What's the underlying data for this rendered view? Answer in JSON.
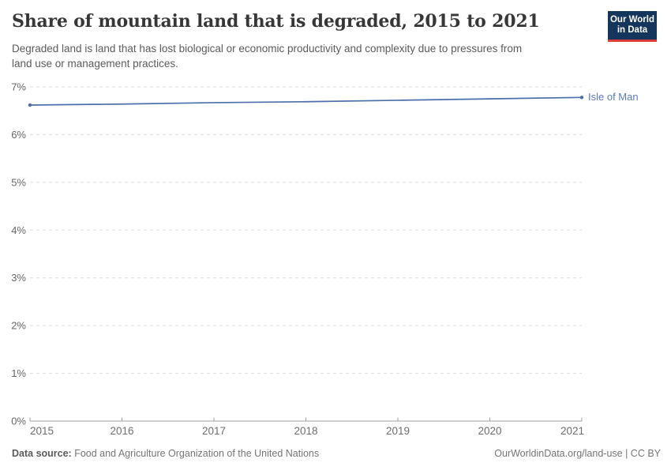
{
  "header": {
    "title": "Share of mountain land that is degraded, 2015 to 2021",
    "subtitle_line1": "Degraded land is land that has lost biological or economic productivity and complexity due to pressures from",
    "subtitle_line2": "land use or management practices.",
    "logo_line1": "Our World",
    "logo_line2": "in Data"
  },
  "chart_data": {
    "type": "line",
    "title": "Share of mountain land that is degraded, 2015 to 2021",
    "x": [
      2015,
      2016,
      2017,
      2018,
      2019,
      2020,
      2021
    ],
    "series": [
      {
        "name": "Isle of Man",
        "values": [
          6.62,
          6.64,
          6.67,
          6.69,
          6.72,
          6.75,
          6.78
        ]
      }
    ],
    "xlabel": "",
    "ylabel": "",
    "ylim": [
      0,
      7
    ],
    "yticks": [
      0,
      1,
      2,
      3,
      4,
      5,
      6,
      7
    ],
    "ytick_suffix": "%",
    "xticks": [
      2015,
      2016,
      2017,
      2018,
      2019,
      2020,
      2021
    ],
    "grid": "horizontal-dashed",
    "legend_position": "end-of-line"
  },
  "footer": {
    "source_label": "Data source:",
    "source_text": "Food and Agriculture Organization of the United Nations",
    "right_text": "OurWorldinData.org/land-use | CC BY"
  },
  "colors": {
    "title": "#373737",
    "subtitle": "#5b5b5b",
    "line": "#4c6ea9",
    "entity_label": "#5b7cb8",
    "grid": "#dcdcdc",
    "axis": "#a1a1a1",
    "axis_text": "#666666",
    "xaxis_text": "#6e6e6e",
    "footer_text": "#757575",
    "footer_bold": "#5a5a5a",
    "logo_bg": "#14355c",
    "logo_stripe": "#dd3d3a"
  }
}
